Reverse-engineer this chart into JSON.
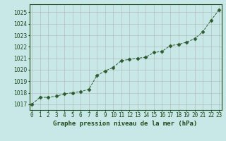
{
  "x": [
    0,
    1,
    2,
    3,
    4,
    5,
    6,
    7,
    8,
    9,
    10,
    11,
    12,
    13,
    14,
    15,
    16,
    17,
    18,
    19,
    20,
    21,
    22,
    23
  ],
  "y": [
    1017.0,
    1017.6,
    1017.6,
    1017.7,
    1017.9,
    1018.0,
    1018.1,
    1018.3,
    1019.5,
    1019.9,
    1020.2,
    1020.8,
    1020.9,
    1021.0,
    1021.1,
    1021.5,
    1021.6,
    1022.1,
    1022.2,
    1022.4,
    1022.7,
    1023.3,
    1024.3,
    1025.2
  ],
  "line_color": "#2d5a2d",
  "marker": "D",
  "marker_size": 2.5,
  "bg_color": "#c8e8e8",
  "grid_color": "#b0b0b0",
  "xlabel": "Graphe pression niveau de la mer (hPa)",
  "xlabel_color": "#1a4a1a",
  "xlabel_fontsize": 6.5,
  "tick_color": "#1a4a1a",
  "tick_fontsize": 5.5,
  "ylim": [
    1016.5,
    1025.7
  ],
  "yticks": [
    1017,
    1018,
    1019,
    1020,
    1021,
    1022,
    1023,
    1024,
    1025
  ],
  "xlim": [
    -0.3,
    23.3
  ]
}
